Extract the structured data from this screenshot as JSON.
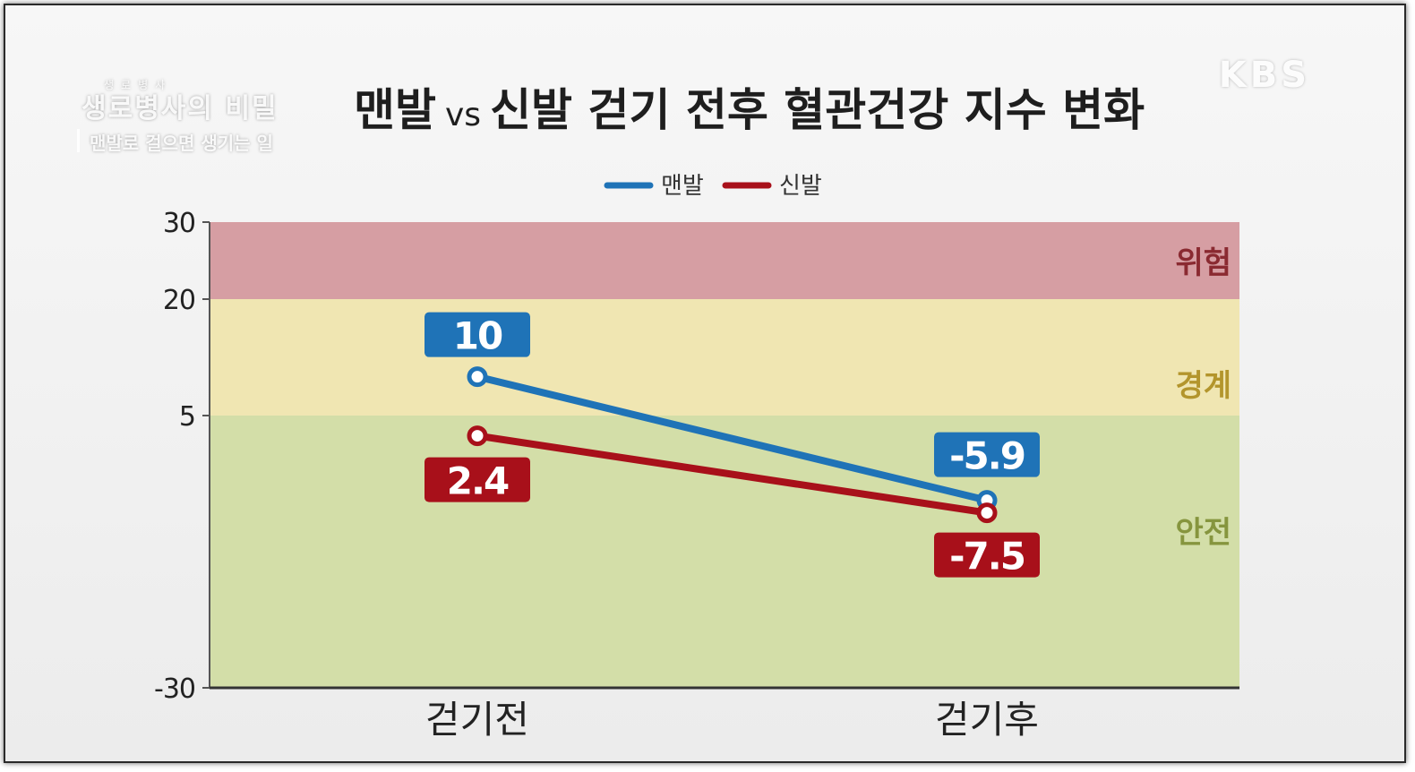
{
  "overlay": {
    "show_logo_small": "생로병사",
    "show_logo": "생로병사의 비밀",
    "show_subtitle": "맨발로 걸으면 생기는 일",
    "network_logo": "KBS"
  },
  "chart_data": {
    "type": "line",
    "title_main": "맨발",
    "title_vs": "vs",
    "title_rest": "신발 걷기 전후 혈관건강 지수 변화",
    "categories": [
      "걷기전",
      "걷기후"
    ],
    "series": [
      {
        "name": "맨발",
        "color": "#1f73b7",
        "values": [
          10,
          -5.9
        ],
        "labels": [
          "10",
          "-5.9"
        ]
      },
      {
        "name": "신발",
        "color": "#a8101a",
        "values": [
          2.4,
          -7.5
        ],
        "labels": [
          "2.4",
          "-7.5"
        ]
      }
    ],
    "y_ticks": [
      {
        "value": 30,
        "label": "30"
      },
      {
        "value": 20,
        "label": "20"
      },
      {
        "value": 5,
        "label": "5"
      },
      {
        "value": -30,
        "label": "-30"
      }
    ],
    "zones": [
      {
        "label": "위험",
        "from": 20,
        "to": 30,
        "color": "#d69ea3",
        "label_color": "#8a2a31"
      },
      {
        "label": "경계",
        "from": 5,
        "to": 20,
        "color": "#f0e6b2",
        "label_color": "#b3952c"
      },
      {
        "label": "안전",
        "from": -30,
        "to": 5,
        "color": "#d3dea8",
        "label_color": "#86953e"
      }
    ],
    "legend_position": "top-center",
    "grid": false
  }
}
